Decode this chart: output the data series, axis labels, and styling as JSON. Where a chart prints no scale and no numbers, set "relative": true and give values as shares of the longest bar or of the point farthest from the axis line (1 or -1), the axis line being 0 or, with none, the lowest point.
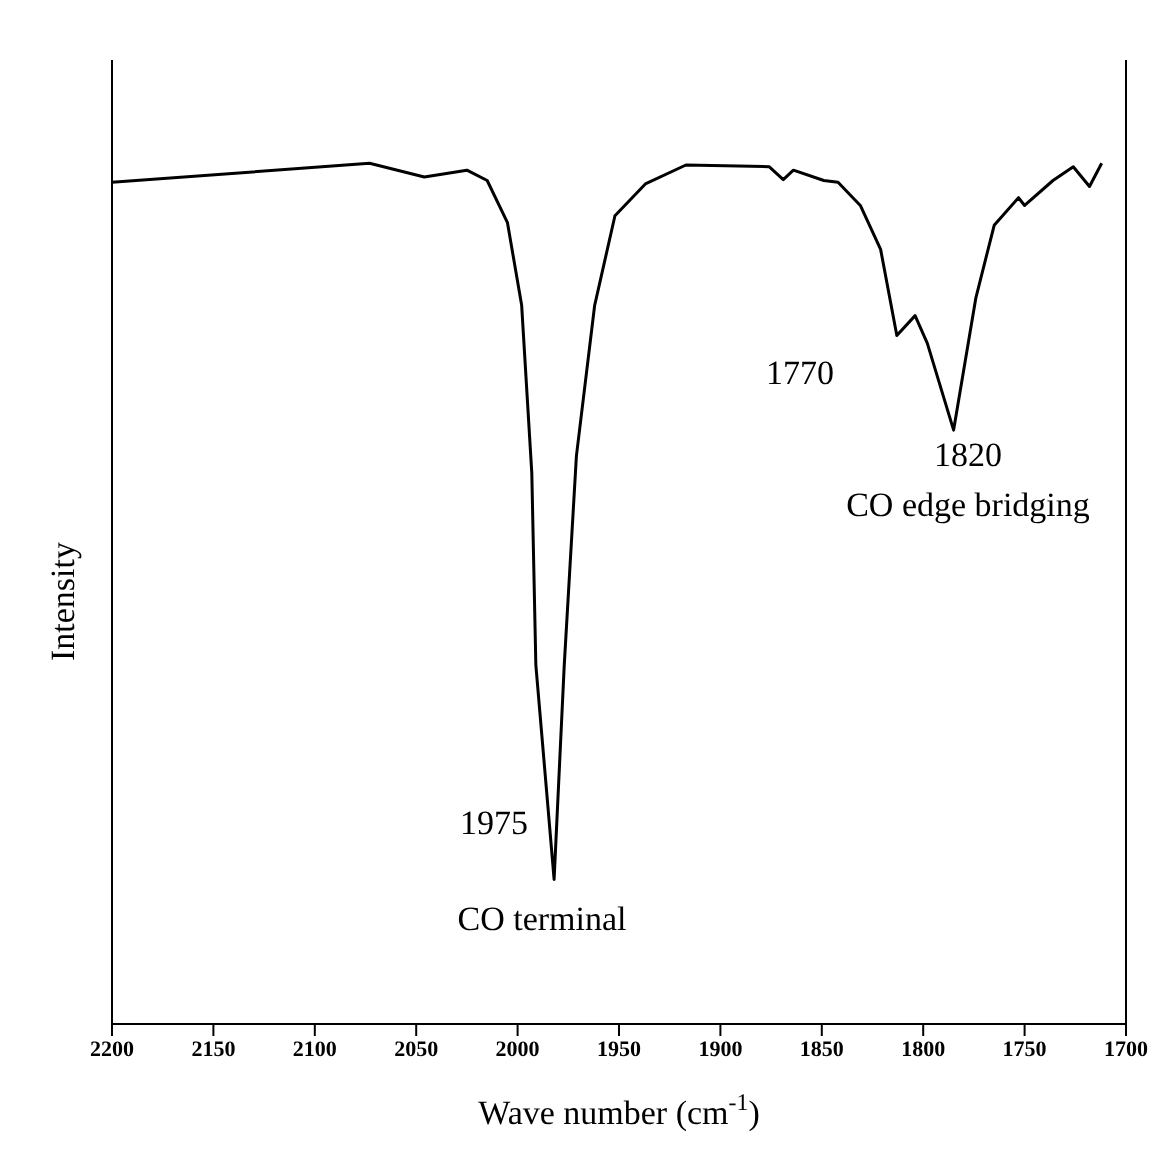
{
  "chart_data": {
    "type": "line",
    "xlabel": "Wave number (cm$^{-1}$)",
    "ylabel": "Intensity",
    "relative": true,
    "xlim": [
      2200,
      1700
    ],
    "xticks": [
      2200,
      2150,
      2100,
      2050,
      2000,
      1950,
      1900,
      1850,
      1800,
      1750,
      1700
    ],
    "x": [
      2200,
      2073,
      2046,
      2025,
      2015,
      2005,
      1998,
      1993,
      1991,
      1982,
      1977,
      1971,
      1962,
      1952,
      1937,
      1917,
      1876,
      1869,
      1864,
      1849,
      1842,
      1831,
      1821,
      1813,
      1804,
      1798,
      1785,
      1774,
      1765,
      1753,
      1750,
      1736,
      1726,
      1718,
      1712
    ],
    "series": [
      {
        "color": "#000000",
        "values": [
          0.978,
          1.0,
          0.984,
          0.992,
          0.98,
          0.931,
          0.835,
          0.64,
          0.417,
          0.168,
          0.417,
          0.66,
          0.835,
          0.939,
          0.976,
          0.998,
          0.996,
          0.981,
          0.992,
          0.98,
          0.978,
          0.951,
          0.9,
          0.8,
          0.823,
          0.791,
          0.69,
          0.844,
          0.928,
          0.96,
          0.951,
          0.98,
          0.996,
          0.973,
          1.0
        ]
      }
    ],
    "annotations": [
      "1975",
      "CO terminal",
      "1770",
      "1820",
      "CO edge bridging"
    ]
  }
}
